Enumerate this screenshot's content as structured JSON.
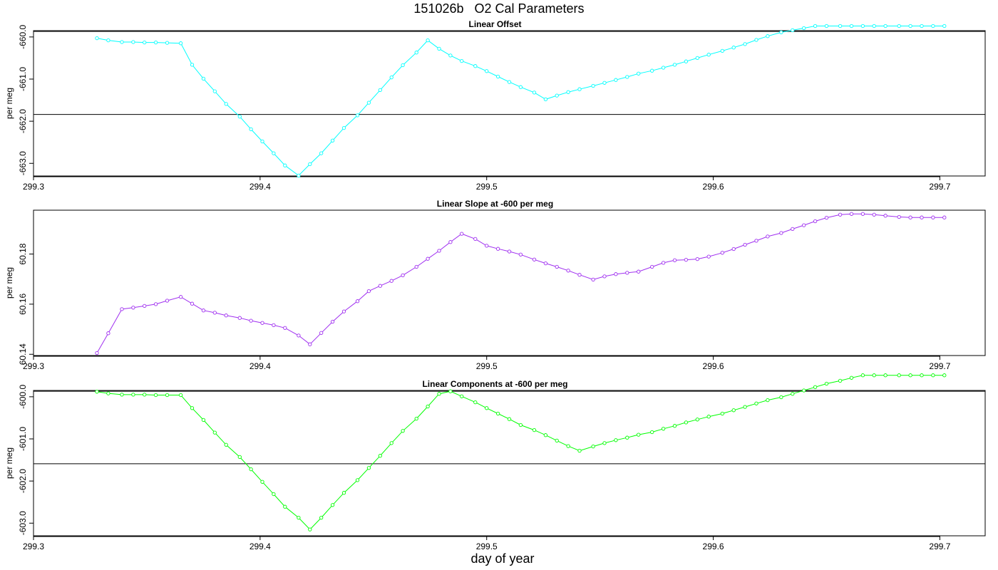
{
  "figure": {
    "title": "151026b   O2 Cal Parameters",
    "xlabel": "day of year"
  },
  "chart_data": [
    {
      "type": "line",
      "title": "Linear Offset",
      "ylabel": "per meg",
      "color": "#00ffff",
      "xlim": [
        299.3,
        299.72
      ],
      "ylim": [
        -663.3,
        -659.85
      ],
      "xticks": [
        "299.3",
        "299.4",
        "299.5",
        "299.6",
        "299.7"
      ],
      "yticks": [
        "-660.0",
        "-661.0",
        "-662.0",
        "-663.0"
      ],
      "hlines": [
        -659.87,
        -661.84
      ],
      "x": [
        299.328,
        299.333,
        299.339,
        299.344,
        299.349,
        299.354,
        299.359,
        299.365,
        299.37,
        299.375,
        299.38,
        299.385,
        299.391,
        299.396,
        299.401,
        299.406,
        299.411,
        299.417,
        299.422,
        299.427,
        299.432,
        299.437,
        299.443,
        299.448,
        299.453,
        299.458,
        299.463,
        299.469,
        299.474,
        299.479,
        299.484,
        299.489,
        299.495,
        299.5,
        299.505,
        299.51,
        299.515,
        299.521,
        299.526,
        299.531,
        299.536,
        299.541,
        299.547,
        299.552,
        299.557,
        299.562,
        299.567,
        299.573,
        299.578,
        299.583,
        299.588,
        299.593,
        299.598,
        299.604,
        299.609,
        299.614,
        299.619,
        299.624,
        299.63,
        299.635,
        299.64,
        299.645,
        299.65,
        299.656,
        299.661,
        299.666,
        299.671,
        299.676,
        299.682,
        299.687,
        299.692,
        299.697,
        299.702
      ],
      "y": [
        -660.03,
        -660.08,
        -660.12,
        -660.12,
        -660.13,
        -660.13,
        -660.14,
        -660.15,
        -660.66,
        -660.99,
        -661.29,
        -661.59,
        -661.89,
        -662.19,
        -662.48,
        -662.76,
        -663.05,
        -663.29,
        -663.02,
        -662.76,
        -662.46,
        -662.16,
        -661.86,
        -661.56,
        -661.26,
        -660.96,
        -660.67,
        -660.37,
        -660.08,
        -660.28,
        -660.44,
        -660.57,
        -660.69,
        -660.81,
        -660.94,
        -661.07,
        -661.19,
        -661.32,
        -661.48,
        -661.39,
        -661.31,
        -661.24,
        -661.16,
        -661.09,
        -661.02,
        -660.95,
        -660.87,
        -660.8,
        -660.73,
        -660.66,
        -660.58,
        -660.5,
        -660.42,
        -660.33,
        -660.25,
        -660.17,
        -660.07,
        -659.98,
        -659.89,
        -659.84,
        -659.79,
        -659.74,
        -659.74,
        -659.74,
        -659.74,
        -659.74,
        -659.74,
        -659.74,
        -659.74,
        -659.74,
        -659.74,
        -659.74,
        -659.74
      ]
    },
    {
      "type": "line",
      "title": "Linear Slope at -600 per meg",
      "ylabel": "per meg",
      "color": "#a030f0",
      "xlim": [
        299.3,
        299.72
      ],
      "ylim": [
        60.1395,
        60.1975
      ],
      "xticks": [
        "299.3",
        "299.4",
        "299.5",
        "299.6",
        "299.7"
      ],
      "yticks": [
        "60.14",
        "60.16",
        "60.18"
      ],
      "hlines": [],
      "x": [
        299.328,
        299.333,
        299.339,
        299.344,
        299.349,
        299.354,
        299.359,
        299.365,
        299.37,
        299.375,
        299.38,
        299.385,
        299.391,
        299.396,
        299.401,
        299.406,
        299.411,
        299.417,
        299.422,
        299.427,
        299.432,
        299.437,
        299.443,
        299.448,
        299.453,
        299.458,
        299.463,
        299.469,
        299.474,
        299.479,
        299.484,
        299.489,
        299.495,
        299.5,
        299.505,
        299.51,
        299.515,
        299.521,
        299.526,
        299.531,
        299.536,
        299.541,
        299.547,
        299.552,
        299.557,
        299.562,
        299.567,
        299.573,
        299.578,
        299.583,
        299.588,
        299.593,
        299.598,
        299.604,
        299.609,
        299.614,
        299.619,
        299.624,
        299.63,
        299.635,
        299.64,
        299.645,
        299.65,
        299.656,
        299.661,
        299.666,
        299.671,
        299.676,
        299.682,
        299.687,
        299.692,
        299.697,
        299.702
      ],
      "y": [
        60.1405,
        60.1484,
        60.158,
        60.1586,
        60.1593,
        60.16,
        60.1614,
        60.1629,
        60.1602,
        60.1575,
        60.1566,
        60.1555,
        60.1545,
        60.1534,
        60.1525,
        60.1516,
        60.1505,
        60.1475,
        60.144,
        60.1485,
        60.153,
        60.1571,
        60.1612,
        60.1652,
        60.1673,
        60.1693,
        60.1715,
        60.1749,
        60.1781,
        60.1813,
        60.1848,
        60.1881,
        60.186,
        60.1833,
        60.1821,
        60.181,
        60.1798,
        60.1778,
        60.1763,
        60.1749,
        60.1734,
        60.1717,
        60.1698,
        60.1711,
        60.172,
        60.1725,
        60.173,
        60.1749,
        60.1765,
        60.1775,
        60.1777,
        60.178,
        60.179,
        60.1805,
        60.182,
        60.1837,
        60.1853,
        60.187,
        60.1884,
        60.19,
        60.1915,
        60.1931,
        60.1945,
        60.1957,
        60.196,
        60.196,
        60.1957,
        60.1953,
        60.1948,
        60.1946,
        60.1946,
        60.1946,
        60.1946
      ]
    },
    {
      "type": "line",
      "title": "Linear Components at -600 per meg",
      "ylabel": "per meg",
      "color": "#00ff00",
      "xlim": [
        299.3,
        299.72
      ],
      "ylim": [
        -603.3,
        -599.85
      ],
      "xticks": [
        "299.3",
        "299.4",
        "299.5",
        "299.6",
        "299.7"
      ],
      "yticks": [
        "-600.0",
        "-601.0",
        "-602.0",
        "-603.0"
      ],
      "hlines": [
        -599.87,
        -601.59
      ],
      "x": [
        299.328,
        299.333,
        299.339,
        299.344,
        299.349,
        299.354,
        299.359,
        299.365,
        299.37,
        299.375,
        299.38,
        299.385,
        299.391,
        299.396,
        299.401,
        299.406,
        299.411,
        299.417,
        299.422,
        299.427,
        299.432,
        299.437,
        299.443,
        299.448,
        299.453,
        299.458,
        299.463,
        299.469,
        299.474,
        299.479,
        299.484,
        299.489,
        299.495,
        299.5,
        299.505,
        299.51,
        299.515,
        299.521,
        299.526,
        299.531,
        299.536,
        299.541,
        299.547,
        299.552,
        299.557,
        299.562,
        299.567,
        299.573,
        299.578,
        299.583,
        299.588,
        299.593,
        299.598,
        299.604,
        299.609,
        299.614,
        299.619,
        299.624,
        299.63,
        299.635,
        299.64,
        299.645,
        299.65,
        299.656,
        299.661,
        299.666,
        299.671,
        299.676,
        299.682,
        299.687,
        299.692,
        299.697,
        299.702
      ],
      "y": [
        -599.88,
        -599.92,
        -599.95,
        -599.95,
        -599.95,
        -599.96,
        -599.96,
        -599.96,
        -600.27,
        -600.55,
        -600.85,
        -601.14,
        -601.43,
        -601.72,
        -602.02,
        -602.31,
        -602.61,
        -602.87,
        -603.15,
        -602.87,
        -602.57,
        -602.28,
        -601.98,
        -601.69,
        -601.4,
        -601.1,
        -600.81,
        -600.52,
        -600.23,
        -599.93,
        -599.87,
        -599.99,
        -600.13,
        -600.27,
        -600.4,
        -600.53,
        -600.67,
        -600.79,
        -600.91,
        -601.04,
        -601.17,
        -601.28,
        -601.18,
        -601.1,
        -601.03,
        -600.97,
        -600.9,
        -600.84,
        -600.76,
        -600.69,
        -600.61,
        -600.54,
        -600.47,
        -600.4,
        -600.32,
        -600.24,
        -600.16,
        -600.08,
        -600.01,
        -599.93,
        -599.85,
        -599.77,
        -599.69,
        -599.62,
        -599.55,
        -599.49,
        -599.49,
        -599.49,
        -599.49,
        -599.49,
        -599.49,
        -599.49,
        -599.49
      ]
    }
  ]
}
